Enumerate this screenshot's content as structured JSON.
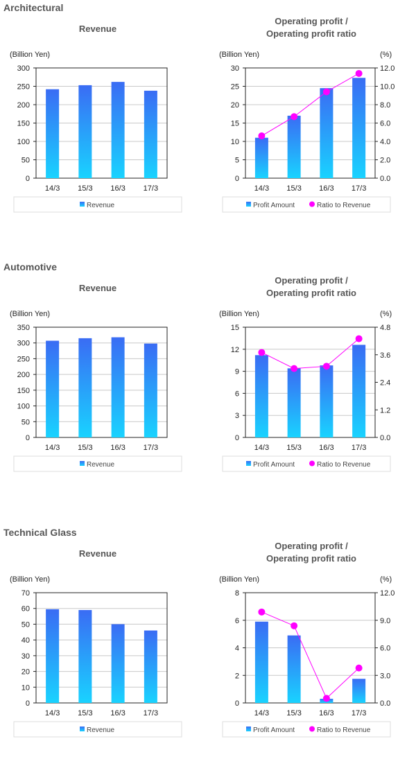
{
  "colors": {
    "bar_top": "#3a6cf4",
    "bar_bottom": "#19d3ff",
    "ratio_line": "#ff00ff",
    "grid": "#c8c8c8",
    "section_heading": "#555555",
    "legend_border": "#dddddd"
  },
  "legend": {
    "revenue": "Revenue",
    "profit_amount": "Profit Amount",
    "ratio_to_revenue": "Ratio to Revenue"
  },
  "sections": [
    {
      "heading": "Architectural",
      "revenue_chart": {
        "type": "bar",
        "title": "Revenue",
        "unit_label": "(Billion Yen)",
        "categories": [
          "14/3",
          "15/3",
          "16/3",
          "17/3"
        ],
        "values": [
          242,
          253,
          262,
          238
        ],
        "ylim": [
          0,
          300
        ],
        "yticks": [
          0,
          50,
          100,
          150,
          200,
          250,
          300
        ],
        "ytick_labels": [
          "0",
          "50",
          "100",
          "150",
          "200",
          "250",
          "300"
        ],
        "legend": "Revenue"
      },
      "profit_chart": {
        "type": "bar+line",
        "title_line1": "Operating profit /",
        "title_line2": "Operating profit ratio",
        "unit_label_left": "(Billion Yen)",
        "unit_label_right": "(%)",
        "categories": [
          "14/3",
          "15/3",
          "16/3",
          "17/3"
        ],
        "profit_values": [
          11.0,
          17.0,
          24.5,
          27.3
        ],
        "ratio_values": [
          4.6,
          6.7,
          9.4,
          11.4
        ],
        "ylim_left": [
          0,
          30
        ],
        "yticks_left": [
          0,
          5,
          10,
          15,
          20,
          25,
          30
        ],
        "ytick_labels_left": [
          "0",
          "5",
          "10",
          "15",
          "20",
          "25",
          "30"
        ],
        "ylim_right": [
          0,
          12
        ],
        "yticks_right": [
          0,
          2,
          4,
          6,
          8,
          10,
          12
        ],
        "ytick_labels_right": [
          "0.0",
          "2.0",
          "4.0",
          "6.0",
          "8.0",
          "10.0",
          "12.0"
        ]
      }
    },
    {
      "heading": "Automotive",
      "revenue_chart": {
        "type": "bar",
        "title": "Revenue",
        "unit_label": "(Billion Yen)",
        "categories": [
          "14/3",
          "15/3",
          "16/3",
          "17/3"
        ],
        "values": [
          307,
          315,
          318,
          298
        ],
        "ylim": [
          0,
          350
        ],
        "yticks": [
          0,
          50,
          100,
          150,
          200,
          250,
          300,
          350
        ],
        "ytick_labels": [
          "0",
          "50",
          "100",
          "150",
          "200",
          "250",
          "300",
          "350"
        ],
        "legend": "Revenue"
      },
      "profit_chart": {
        "type": "bar+line",
        "title_line1": "Operating profit /",
        "title_line2": "Operating profit ratio",
        "unit_label_left": "(Billion Yen)",
        "unit_label_right": "(%)",
        "categories": [
          "14/3",
          "15/3",
          "16/3",
          "17/3"
        ],
        "profit_values": [
          11.2,
          9.4,
          9.8,
          12.6
        ],
        "ratio_values": [
          3.7,
          3.0,
          3.1,
          4.3
        ],
        "ylim_left": [
          0,
          15
        ],
        "yticks_left": [
          0,
          3,
          6,
          9,
          12,
          15
        ],
        "ytick_labels_left": [
          "0",
          "3",
          "6",
          "9",
          "12",
          "15"
        ],
        "ylim_right": [
          0,
          4.8
        ],
        "yticks_right": [
          0,
          1.2,
          2.4,
          3.6,
          4.8
        ],
        "ytick_labels_right": [
          "0.0",
          "1.2",
          "2.4",
          "3.6",
          "4.8"
        ]
      }
    },
    {
      "heading": "Technical Glass",
      "revenue_chart": {
        "type": "bar",
        "title": "Revenue",
        "unit_label": "(Billion Yen)",
        "categories": [
          "14/3",
          "15/3",
          "16/3",
          "17/3"
        ],
        "values": [
          59.5,
          59,
          50,
          46
        ],
        "ylim": [
          0,
          70
        ],
        "yticks": [
          0,
          10,
          20,
          30,
          40,
          50,
          60,
          70
        ],
        "ytick_labels": [
          "0",
          "10",
          "20",
          "30",
          "40",
          "50",
          "60",
          "70"
        ],
        "legend": "Revenue"
      },
      "profit_chart": {
        "type": "bar+line",
        "title_line1": "Operating profit /",
        "title_line2": "Operating profit ratio",
        "unit_label_left": "(Billion Yen)",
        "unit_label_right": "(%)",
        "categories": [
          "14/3",
          "15/3",
          "16/3",
          "17/3"
        ],
        "profit_values": [
          5.9,
          4.9,
          0.3,
          1.75
        ],
        "ratio_values": [
          9.9,
          8.4,
          0.5,
          3.8
        ],
        "ylim_left": [
          0,
          8
        ],
        "yticks_left": [
          0,
          2,
          4,
          6,
          8
        ],
        "ytick_labels_left": [
          "0",
          "2",
          "4",
          "6",
          "8"
        ],
        "ylim_right": [
          0,
          12
        ],
        "yticks_right": [
          0,
          3,
          6,
          9,
          12
        ],
        "ytick_labels_right": [
          "0.0",
          "3.0",
          "6.0",
          "9.0",
          "12.0"
        ]
      }
    }
  ],
  "chart_data": [
    {
      "type": "bar",
      "title": "Revenue",
      "group": "Architectural",
      "categories": [
        "14/3",
        "15/3",
        "16/3",
        "17/3"
      ],
      "values": [
        242,
        253,
        262,
        238
      ],
      "ylabel": "(Billion Yen)",
      "ylim": [
        0,
        300
      ]
    },
    {
      "type": "bar+line",
      "title": "Operating profit / Operating profit ratio",
      "group": "Architectural",
      "categories": [
        "14/3",
        "15/3",
        "16/3",
        "17/3"
      ],
      "series": [
        {
          "name": "Profit Amount",
          "values": [
            11.0,
            17.0,
            24.5,
            27.3
          ]
        },
        {
          "name": "Ratio to Revenue",
          "values": [
            4.6,
            6.7,
            9.4,
            11.4
          ]
        }
      ],
      "ylim": [
        0,
        30
      ],
      "y2lim": [
        0,
        12
      ]
    },
    {
      "type": "bar",
      "title": "Revenue",
      "group": "Automotive",
      "categories": [
        "14/3",
        "15/3",
        "16/3",
        "17/3"
      ],
      "values": [
        307,
        315,
        318,
        298
      ],
      "ylabel": "(Billion Yen)",
      "ylim": [
        0,
        350
      ]
    },
    {
      "type": "bar+line",
      "title": "Operating profit / Operating profit ratio",
      "group": "Automotive",
      "categories": [
        "14/3",
        "15/3",
        "16/3",
        "17/3"
      ],
      "series": [
        {
          "name": "Profit Amount",
          "values": [
            11.2,
            9.4,
            9.8,
            12.6
          ]
        },
        {
          "name": "Ratio to Revenue",
          "values": [
            3.7,
            3.0,
            3.1,
            4.3
          ]
        }
      ],
      "ylim": [
        0,
        15
      ],
      "y2lim": [
        0,
        4.8
      ]
    },
    {
      "type": "bar",
      "title": "Revenue",
      "group": "Technical Glass",
      "categories": [
        "14/3",
        "15/3",
        "16/3",
        "17/3"
      ],
      "values": [
        59.5,
        59,
        50,
        46
      ],
      "ylabel": "(Billion Yen)",
      "ylim": [
        0,
        70
      ]
    },
    {
      "type": "bar+line",
      "title": "Operating profit / Operating profit ratio",
      "group": "Technical Glass",
      "categories": [
        "14/3",
        "15/3",
        "16/3",
        "17/3"
      ],
      "series": [
        {
          "name": "Profit Amount",
          "values": [
            5.9,
            4.9,
            0.3,
            1.75
          ]
        },
        {
          "name": "Ratio to Revenue",
          "values": [
            9.9,
            8.4,
            0.5,
            3.8
          ]
        }
      ],
      "ylim": [
        0,
        8
      ],
      "y2lim": [
        0,
        12
      ]
    }
  ]
}
